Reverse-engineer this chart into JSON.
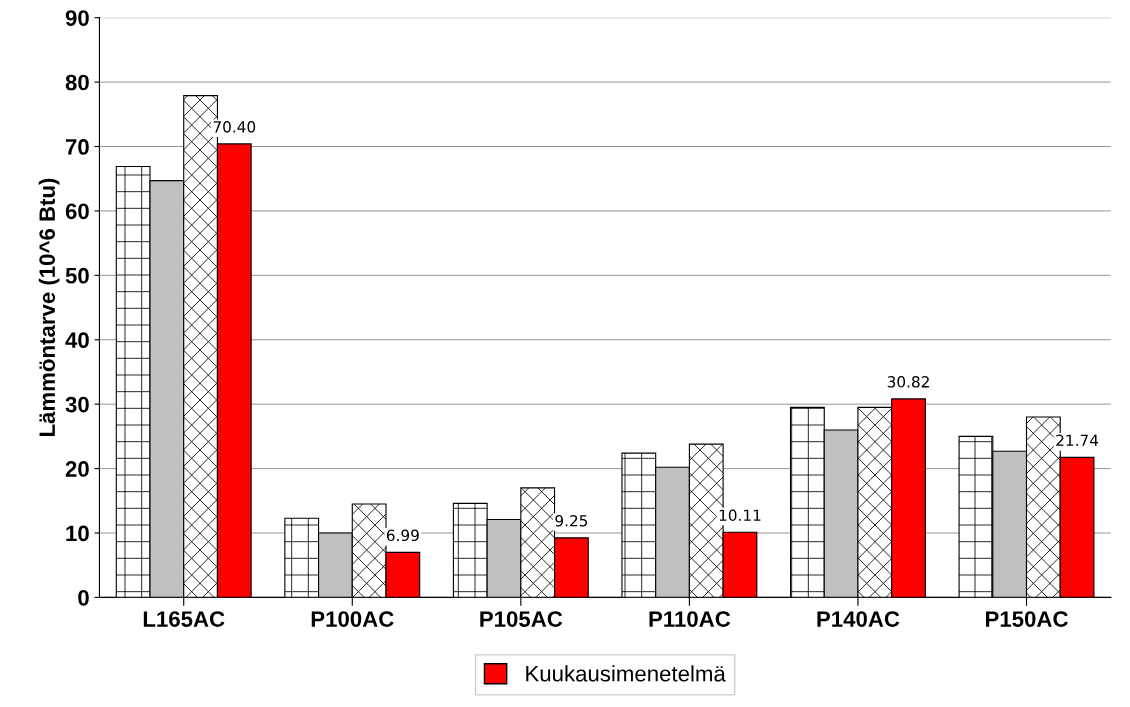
{
  "chart_data": {
    "type": "bar",
    "ylabel": "Lämmöntarve (10^6 Btu)",
    "categories": [
      "L165AC",
      "P100AC",
      "P105AC",
      "P110AC",
      "P140AC",
      "P150AC"
    ],
    "series": [
      {
        "color": "#000000",
        "values": [
          66.9,
          12.3,
          14.6,
          22.4,
          29.5,
          25.0
        ]
      },
      {
        "color": "#c0c0c0",
        "values": [
          64.7,
          10.0,
          12.1,
          20.2,
          26.0,
          22.7
        ]
      },
      {
        "color": "#000000",
        "values": [
          77.9,
          14.5,
          17.0,
          23.8,
          29.5,
          28.0
        ]
      },
      {
        "name": "Kuukausimenetelmä",
        "color": "#ff0000",
        "values": [
          70.4,
          6.99,
          9.25,
          10.11,
          30.82,
          21.74
        ],
        "value_labels": [
          "70.40",
          "6.99",
          "9.25",
          "10.11",
          "30.82",
          "21.74"
        ]
      }
    ],
    "ylim": [
      0,
      90
    ],
    "yticks": [
      0,
      10,
      20,
      30,
      40,
      50,
      60,
      70,
      80,
      90
    ],
    "grid": "y",
    "legend": "bottom"
  }
}
